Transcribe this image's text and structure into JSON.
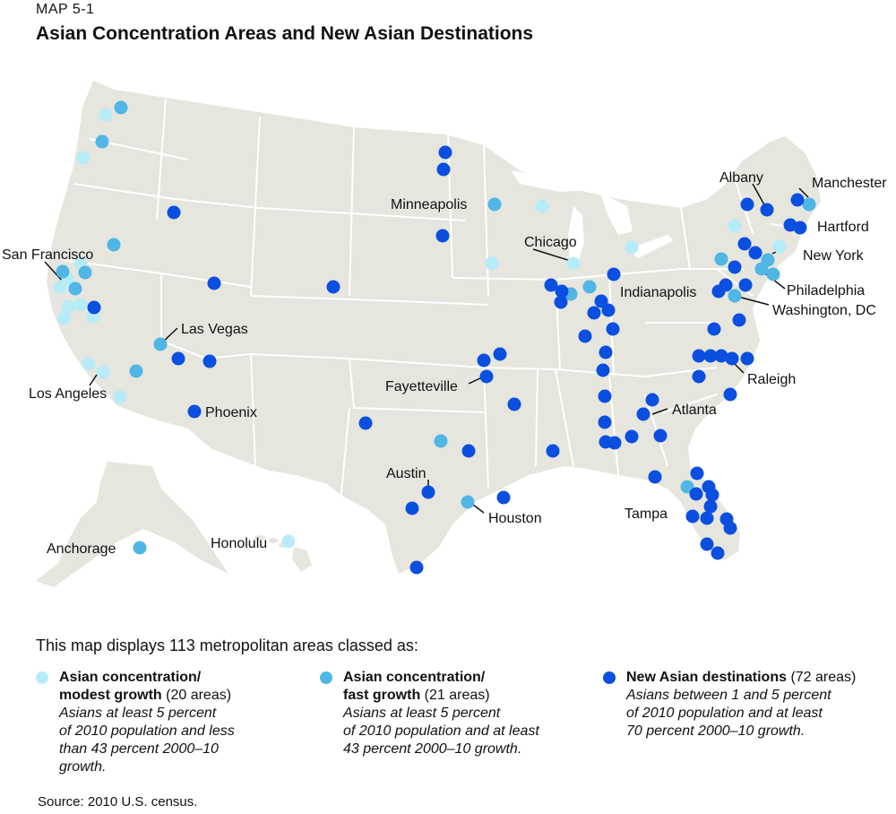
{
  "header": {
    "eyebrow": "MAP 5-1",
    "title": "Asian Concentration Areas and New Asian Destinations"
  },
  "colors": {
    "modest": "#b6ecf8",
    "fast": "#4fb6e6",
    "new": "#0a4fe0",
    "land": "#e6e5de",
    "border": "#ffffff"
  },
  "cities": [
    {
      "name": "San Francisco",
      "anchor": "start"
    },
    {
      "name": "Los Angeles",
      "anchor": "start"
    },
    {
      "name": "Las Vegas",
      "anchor": "start"
    },
    {
      "name": "Phoenix",
      "anchor": "start"
    },
    {
      "name": "Minneapolis",
      "anchor": "start"
    },
    {
      "name": "Chicago",
      "anchor": "start"
    },
    {
      "name": "Indianapolis",
      "anchor": "start"
    },
    {
      "name": "Fayetteville",
      "anchor": "start"
    },
    {
      "name": "Austin",
      "anchor": "start"
    },
    {
      "name": "Houston",
      "anchor": "start"
    },
    {
      "name": "Atlanta",
      "anchor": "start"
    },
    {
      "name": "Tampa",
      "anchor": "start"
    },
    {
      "name": "Albany",
      "anchor": "start"
    },
    {
      "name": "Manchester",
      "anchor": "start"
    },
    {
      "name": "Hartford",
      "anchor": "start"
    },
    {
      "name": "New York",
      "anchor": "start"
    },
    {
      "name": "Philadelphia",
      "anchor": "start"
    },
    {
      "name": "Washington, DC",
      "anchor": "start"
    },
    {
      "name": "Raleigh",
      "anchor": "start"
    },
    {
      "name": "Anchorage",
      "anchor": "start"
    },
    {
      "name": "Honolulu",
      "anchor": "start"
    }
  ],
  "intro": "This map displays 113 metropolitan areas classed as:",
  "legend": [
    {
      "bold1": "Asian concentration/",
      "bold2": "modest growth",
      "count": " (20 areas)",
      "desc": [
        "Asians at least 5 percent",
        "of 2010 population and less",
        "than 43 percent 2000–10",
        "growth."
      ]
    },
    {
      "bold1": "Asian concentration/",
      "bold2": "fast growth",
      "count": " (21 areas)",
      "desc": [
        "Asians at least 5 percent",
        "of 2010 population and at least",
        "43 percent 2000–10 growth."
      ]
    },
    {
      "bold1": "New Asian destinations",
      "bold2": "",
      "count": " (72 areas)",
      "desc": [
        "Asians between 1 and 5 percent",
        "of 2010 population and at least",
        "70 percent 2000–10 growth."
      ]
    }
  ],
  "source": "Source: 2010 U.S. census."
}
